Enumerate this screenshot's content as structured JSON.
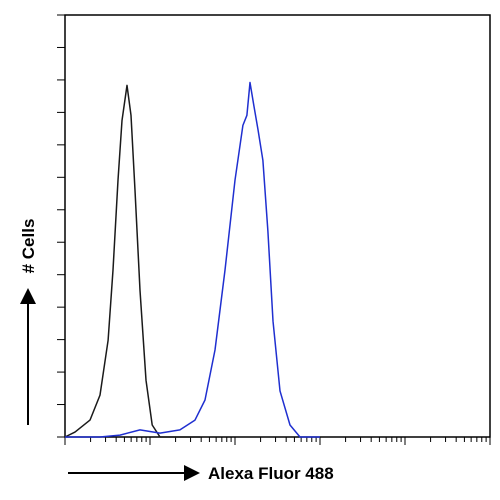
{
  "chart_data": {
    "type": "line",
    "x_label": "Alexa Fluor 488",
    "y_label": "# Cells",
    "xscale": "log",
    "xlim": [
      1,
      100000
    ],
    "ylim": [
      0,
      13
    ],
    "yticks": [
      0,
      1,
      2,
      3,
      4,
      5,
      6,
      7,
      8,
      9,
      10,
      11,
      12,
      13
    ],
    "xticks": [
      1,
      2,
      3,
      4,
      5,
      6,
      7,
      8,
      9,
      10,
      20,
      30,
      40,
      50,
      60,
      70,
      80,
      90,
      100,
      200,
      300,
      400,
      500,
      600,
      700,
      800,
      900,
      1000,
      2000,
      3000,
      4000,
      5000,
      6000,
      7000,
      8000,
      9000,
      10000,
      20000,
      30000,
      40000,
      50000,
      60000,
      70000,
      80000,
      90000,
      100000
    ],
    "series": [
      {
        "color": "#1a1a1a",
        "x": [
          1,
          1.31,
          1.97,
          2.58,
          3.21,
          3.67,
          4.2,
          4.69,
          5.36,
          5.98,
          6.66,
          7.62,
          8.97,
          10.6,
          13.1,
          38.7
        ],
        "values": [
          0,
          0.15,
          0.52,
          1.29,
          2.98,
          5.14,
          7.91,
          9.75,
          10.83,
          9.91,
          7.6,
          4.52,
          1.75,
          0.37,
          0,
          0
        ]
      },
      {
        "color": "#1f2fd0",
        "x": [
          1,
          2.58,
          4.44,
          7.62,
          13.1,
          22.5,
          33.8,
          44.4,
          58.2,
          76.2,
          100,
          124,
          138,
          150,
          167,
          187,
          213,
          244,
          280,
          338,
          444,
          582,
          1000
        ],
        "values": [
          0,
          0,
          0.06,
          0.22,
          0.12,
          0.22,
          0.52,
          1.14,
          2.68,
          5.14,
          7.91,
          9.6,
          9.91,
          10.92,
          10.2,
          9.45,
          8.52,
          6.34,
          3.57,
          1.42,
          0.37,
          0,
          0
        ]
      }
    ]
  }
}
